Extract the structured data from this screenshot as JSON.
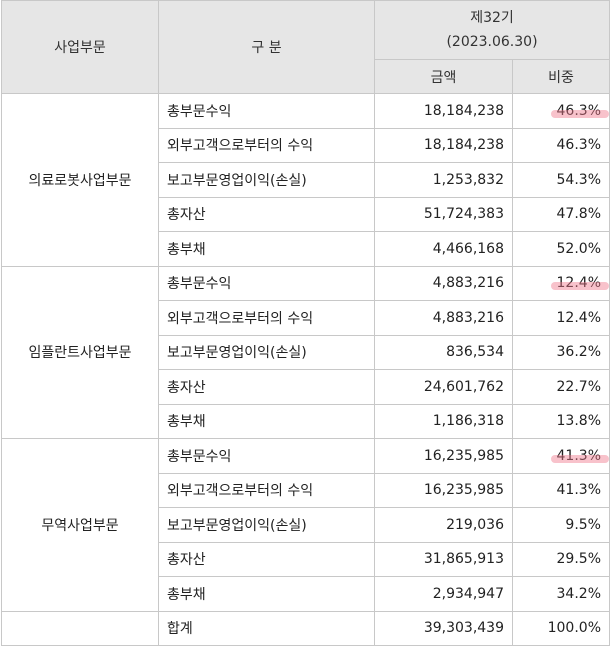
{
  "header": {
    "segment": "사업부문",
    "category": "구 분",
    "period_label": "제32기",
    "period_date": "(2023.06.30)",
    "amount": "금액",
    "ratio": "비중"
  },
  "segments": [
    {
      "name": "의료로봇사업부문",
      "rows": [
        {
          "item": "총부문수익",
          "amount": "18,184,238",
          "ratio": "46.3%",
          "highlight": true
        },
        {
          "item": "외부고객으로부터의 수익",
          "amount": "18,184,238",
          "ratio": "46.3%"
        },
        {
          "item": "보고부문영업이익(손실)",
          "amount": "1,253,832",
          "ratio": "54.3%"
        },
        {
          "item": "총자산",
          "amount": "51,724,383",
          "ratio": "47.8%"
        },
        {
          "item": "총부채",
          "amount": "4,466,168",
          "ratio": "52.0%"
        }
      ]
    },
    {
      "name": "임플란트사업부문",
      "rows": [
        {
          "item": "총부문수익",
          "amount": "4,883,216",
          "ratio": "12.4%",
          "highlight": true
        },
        {
          "item": "외부고객으로부터의 수익",
          "amount": "4,883,216",
          "ratio": "12.4%"
        },
        {
          "item": "보고부문영업이익(손실)",
          "amount": "836,534",
          "ratio": "36.2%"
        },
        {
          "item": "총자산",
          "amount": "24,601,762",
          "ratio": "22.7%"
        },
        {
          "item": "총부채",
          "amount": "1,186,318",
          "ratio": "13.8%"
        }
      ]
    },
    {
      "name": "무역사업부문",
      "rows": [
        {
          "item": "총부문수익",
          "amount": "16,235,985",
          "ratio": "41.3%",
          "highlight": true
        },
        {
          "item": "외부고객으로부터의 수익",
          "amount": "16,235,985",
          "ratio": "41.3%"
        },
        {
          "item": "보고부문영업이익(손실)",
          "amount": "219,036",
          "ratio": "9.5%"
        },
        {
          "item": "총자산",
          "amount": "31,865,913",
          "ratio": "29.5%"
        },
        {
          "item": "총부채",
          "amount": "2,934,947",
          "ratio": "34.2%"
        }
      ]
    }
  ],
  "total": {
    "item": "합계",
    "amount": "39,303,439",
    "ratio": "100.0%"
  }
}
